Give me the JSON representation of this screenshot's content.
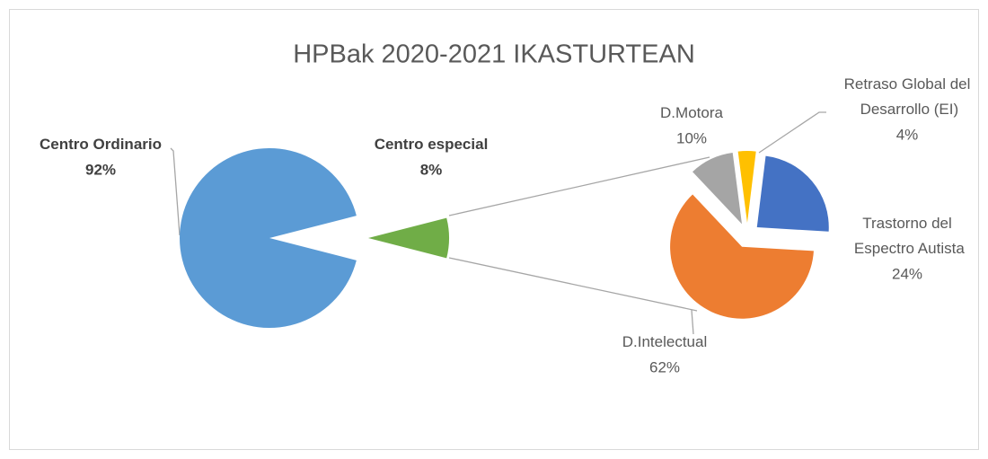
{
  "chart_data": [
    {
      "type": "pie",
      "title": "HPBak 2020-2021 IKASTURTEAN",
      "categories": [
        "Centro Ordinario",
        "Centro especial"
      ],
      "values": [
        92,
        8
      ],
      "value_labels": [
        "92%",
        "8%"
      ],
      "colors": [
        "#5b9bd5",
        "#70ad47"
      ]
    },
    {
      "type": "pie",
      "categories": [
        "Trastorno del Espectro Autista",
        "D.Intelectual",
        "D.Motora",
        "Retraso Global del Desarrollo (EI)"
      ],
      "values": [
        24,
        62,
        10,
        4
      ],
      "value_labels": [
        "24%",
        "62%",
        "10%",
        "4%"
      ],
      "colors": [
        "#4472c4",
        "#ed7d31",
        "#a5a5a5",
        "#ffc000"
      ]
    }
  ]
}
